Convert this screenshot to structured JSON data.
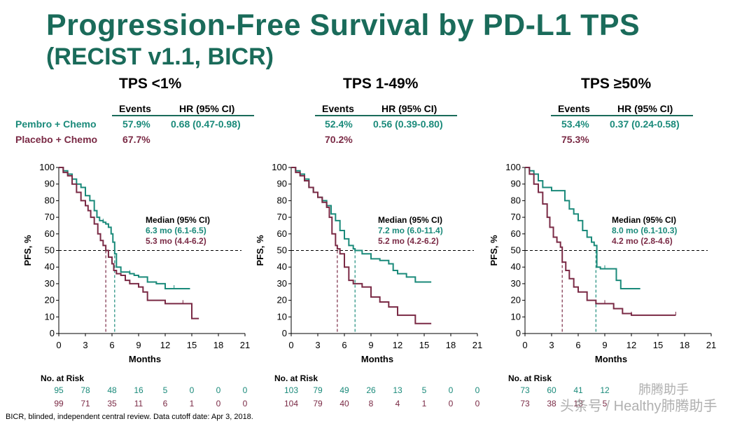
{
  "title": "Progression-Free Survival by PD-L1 TPS",
  "subtitle": "(RECIST v1.1, BICR)",
  "colors": {
    "pembro": "#1a8a7a",
    "placebo": "#7a2a45",
    "title": "#1a6b5a"
  },
  "row_labels": {
    "pembro": "Pembro + Chemo",
    "placebo": "Placebo + Chemo"
  },
  "stats_headers": {
    "events": "Events",
    "hr": "HR (95% CI)"
  },
  "risk_table_label": "No. at Risk",
  "footnote": "BICR, blinded, independent central review. Data cutoff date: Apr 3, 2018.",
  "watermark": {
    "line1": "肺腾助手",
    "line2": "头条号 / Healthy肺腾助手"
  },
  "chart_data": [
    {
      "type": "line",
      "title": "TPS <1%",
      "events": {
        "pembro": "57.9%",
        "placebo": "67.7%"
      },
      "hr": "0.68 (0.47-0.98)",
      "xlabel": "Months",
      "ylabel": "PFS, %",
      "xlim": [
        0,
        21
      ],
      "ylim": [
        0,
        100
      ],
      "xticks": [
        0,
        3,
        6,
        9,
        12,
        15,
        18,
        21
      ],
      "yticks": [
        0,
        10,
        20,
        30,
        40,
        50,
        60,
        70,
        80,
        90,
        100
      ],
      "reference_line_y": 50,
      "median_header": "Median (95% CI)",
      "series": [
        {
          "name": "Pembro + Chemo",
          "median_text": "6.3 mo (6.1-6.5)",
          "median": 6.3,
          "x": [
            0,
            0.5,
            1,
            1.5,
            2,
            2.5,
            3,
            3.5,
            4,
            4.3,
            4.6,
            5,
            5.3,
            5.6,
            5.9,
            6.1,
            6.3,
            6.5,
            7,
            7.5,
            8,
            8.5,
            9,
            10,
            11,
            12,
            13,
            14,
            14.8
          ],
          "y": [
            100,
            98,
            96,
            93,
            90,
            88,
            83,
            80,
            74,
            70,
            68,
            67,
            66,
            64,
            60,
            55,
            48,
            40,
            37,
            37,
            36,
            35,
            34,
            31,
            30,
            27,
            27,
            27,
            27
          ],
          "risk": [
            "95",
            "78",
            "48",
            "16",
            "5",
            "0",
            "0",
            "0"
          ]
        },
        {
          "name": "Placebo + Chemo",
          "median_text": "5.3 mo (4.4-6.2)",
          "median": 5.3,
          "x": [
            0,
            0.5,
            1,
            1.5,
            2,
            2.5,
            3,
            3.3,
            3.6,
            4,
            4.4,
            4.7,
            5,
            5.3,
            5.6,
            6,
            6.2,
            6.5,
            7,
            7.5,
            8,
            9,
            9.5,
            10,
            12,
            13,
            14,
            15,
            15.8
          ],
          "y": [
            100,
            97,
            95,
            90,
            85,
            80,
            77,
            74,
            70,
            66,
            60,
            56,
            53,
            50,
            46,
            42,
            38,
            36,
            35,
            32,
            30,
            28,
            25,
            20,
            18,
            18,
            18,
            9,
            9
          ],
          "risk": [
            "99",
            "71",
            "35",
            "11",
            "6",
            "1",
            "0",
            "0"
          ]
        }
      ]
    },
    {
      "type": "line",
      "title": "TPS 1-49%",
      "events": {
        "pembro": "52.4%",
        "placebo": "70.2%"
      },
      "hr": "0.56 (0.39-0.80)",
      "xlabel": "Months",
      "ylabel": "PFS, %",
      "xlim": [
        0,
        21
      ],
      "ylim": [
        0,
        100
      ],
      "xticks": [
        0,
        3,
        6,
        9,
        12,
        15,
        18,
        21
      ],
      "yticks": [
        0,
        10,
        20,
        30,
        40,
        50,
        60,
        70,
        80,
        90,
        100
      ],
      "reference_line_y": 50,
      "median_header": "Median (95% CI)",
      "series": [
        {
          "name": "Pembro + Chemo",
          "median_text": "7.2 mo (6.0-11.4)",
          "median": 7.2,
          "x": [
            0,
            0.5,
            1,
            1.5,
            2,
            2.5,
            3,
            3.5,
            4,
            4.5,
            5,
            5.5,
            6,
            6.5,
            7,
            7.2,
            8,
            9,
            10,
            11,
            11.5,
            12,
            13,
            14,
            15,
            15.8
          ],
          "y": [
            100,
            98,
            96,
            93,
            88,
            85,
            82,
            80,
            77,
            72,
            68,
            62,
            57,
            53,
            51,
            50,
            48,
            45,
            44,
            42,
            38,
            36,
            34,
            31,
            31,
            31
          ],
          "risk": [
            "103",
            "79",
            "49",
            "26",
            "13",
            "5",
            "0",
            "0"
          ]
        },
        {
          "name": "Placebo + Chemo",
          "median_text": "5.2 mo (4.2-6.2)",
          "median": 5.2,
          "x": [
            0,
            0.5,
            1,
            1.5,
            2,
            2.5,
            3,
            3.5,
            4,
            4.3,
            4.6,
            5,
            5.2,
            5.5,
            6,
            6.5,
            7,
            8,
            9,
            10,
            11,
            12,
            13,
            14,
            15,
            15.8
          ],
          "y": [
            100,
            97,
            95,
            92,
            88,
            85,
            82,
            79,
            76,
            70,
            60,
            53,
            51,
            48,
            40,
            32,
            30,
            28,
            22,
            19,
            16,
            11,
            11,
            6,
            6,
            6
          ],
          "risk": [
            "104",
            "79",
            "40",
            "8",
            "4",
            "1",
            "0",
            "0"
          ]
        }
      ]
    },
    {
      "type": "line",
      "title": "TPS ≥50%",
      "events": {
        "pembro": "53.4%",
        "placebo": "75.3%"
      },
      "hr": "0.37 (0.24-0.58)",
      "xlabel": "Months",
      "ylabel": "PFS, %",
      "xlim": [
        0,
        21
      ],
      "ylim": [
        0,
        100
      ],
      "xticks": [
        0,
        3,
        6,
        9,
        12,
        15,
        18,
        21
      ],
      "yticks": [
        0,
        10,
        20,
        30,
        40,
        50,
        60,
        70,
        80,
        90,
        100
      ],
      "reference_line_y": 50,
      "median_header": "Median (95% CI)",
      "series": [
        {
          "name": "Pembro + Chemo",
          "median_text": "8.0 mo (6.1-10.3)",
          "median": 8.0,
          "x": [
            0,
            0.5,
            1,
            1.5,
            2,
            3,
            4,
            4.5,
            5,
            5.5,
            6,
            6.5,
            7,
            7.5,
            7.8,
            8.1,
            8.5,
            9,
            10,
            10.3,
            10.8,
            11.5,
            13
          ],
          "y": [
            100,
            98,
            96,
            92,
            88,
            86,
            86,
            80,
            75,
            72,
            68,
            62,
            58,
            55,
            53,
            40,
            39,
            39,
            39,
            32,
            27,
            27,
            27
          ],
          "risk": [
            "73",
            "60",
            "41",
            "12",
            "",
            "",
            "",
            ""
          ]
        },
        {
          "name": "Placebo + Chemo",
          "median_text": "4.2 mo (2.8-4.6)",
          "median": 4.2,
          "x": [
            0,
            0.5,
            1,
            1.5,
            2,
            2.5,
            2.8,
            3.2,
            3.6,
            4,
            4.2,
            4.6,
            5,
            5.5,
            6,
            7,
            8,
            9,
            10,
            11,
            12,
            14,
            15,
            17
          ],
          "y": [
            100,
            96,
            90,
            85,
            78,
            70,
            64,
            58,
            55,
            52,
            43,
            38,
            33,
            28,
            25,
            20,
            18,
            18,
            15,
            12,
            11,
            11,
            11,
            11
          ],
          "risk": [
            "73",
            "38",
            "13",
            "5",
            "",
            "",
            "",
            ""
          ]
        }
      ]
    }
  ]
}
